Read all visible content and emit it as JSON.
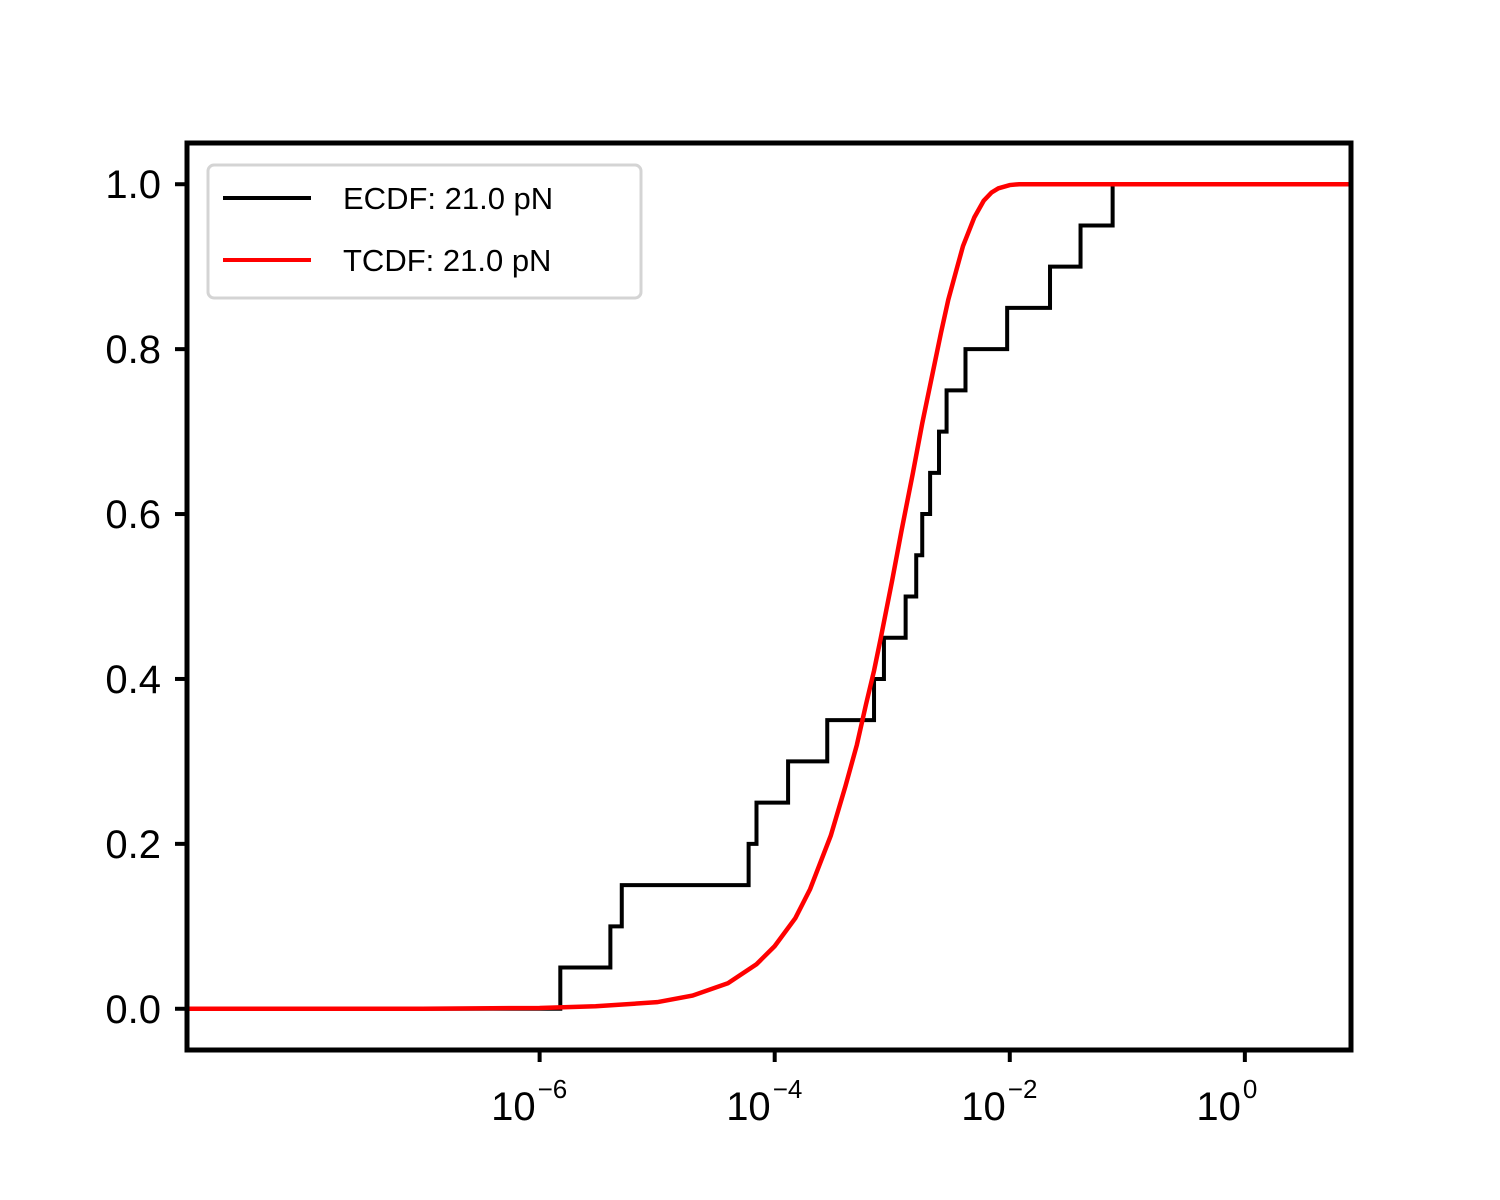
{
  "chart_data": {
    "type": "line",
    "title": "",
    "xlabel": "",
    "ylabel": "",
    "xscale": "log",
    "xlim": [
      1e-09,
      8
    ],
    "ylim": [
      -0.05,
      1.05
    ],
    "x_ticks": [
      {
        "value": 1e-06,
        "base": "10",
        "exponent": "−6"
      },
      {
        "value": 0.0001,
        "base": "10",
        "exponent": "−4"
      },
      {
        "value": 0.01,
        "base": "10",
        "exponent": "−2"
      },
      {
        "value": 1,
        "base": "10",
        "exponent": "0"
      }
    ],
    "y_ticks": [
      {
        "value": 0.0,
        "label": "0.0"
      },
      {
        "value": 0.2,
        "label": "0.2"
      },
      {
        "value": 0.4,
        "label": "0.4"
      },
      {
        "value": 0.6,
        "label": "0.6"
      },
      {
        "value": 0.8,
        "label": "0.8"
      },
      {
        "value": 1.0,
        "label": "1.0"
      }
    ],
    "grid": false,
    "legend": {
      "position": "top-left"
    },
    "series": [
      {
        "name": "ECDF: 21.0 pN",
        "kind": "step",
        "color": "#000000",
        "x": [
          1e-09,
          1.5e-06,
          4e-06,
          5e-06,
          6e-05,
          7e-05,
          0.00013,
          0.00028,
          0.0007,
          0.00085,
          0.0013,
          0.0016,
          0.0018,
          0.0021,
          0.0025,
          0.0029,
          0.0042,
          0.0095,
          0.022,
          0.04,
          0.075,
          8
        ],
        "y": [
          0.0,
          0.05,
          0.1,
          0.15,
          0.2,
          0.25,
          0.3,
          0.35,
          0.4,
          0.45,
          0.5,
          0.55,
          0.6,
          0.65,
          0.7,
          0.75,
          0.8,
          0.85,
          0.9,
          0.95,
          1.0,
          1.0
        ]
      },
      {
        "name": "TCDF: 21.0 pN",
        "kind": "smooth",
        "color": "#ff0000",
        "x": [
          1e-09,
          1e-07,
          1e-06,
          3e-06,
          1e-05,
          2e-05,
          4e-05,
          7e-05,
          0.0001,
          0.00015,
          0.0002,
          0.0003,
          0.0004,
          0.0005,
          0.0006,
          0.0007,
          0.0008,
          0.001,
          0.0012,
          0.0015,
          0.0018,
          0.0022,
          0.0026,
          0.003,
          0.0035,
          0.004,
          0.005,
          0.006,
          0.007,
          0.008,
          0.01,
          0.012,
          0.015,
          0.02,
          8
        ],
        "y": [
          0.0,
          0.0,
          0.001,
          0.003,
          0.008,
          0.016,
          0.031,
          0.054,
          0.076,
          0.11,
          0.145,
          0.21,
          0.27,
          0.32,
          0.37,
          0.41,
          0.45,
          0.52,
          0.58,
          0.65,
          0.71,
          0.77,
          0.82,
          0.86,
          0.895,
          0.925,
          0.96,
          0.98,
          0.99,
          0.995,
          0.999,
          1.0,
          1.0,
          1.0,
          1.0
        ]
      }
    ]
  }
}
